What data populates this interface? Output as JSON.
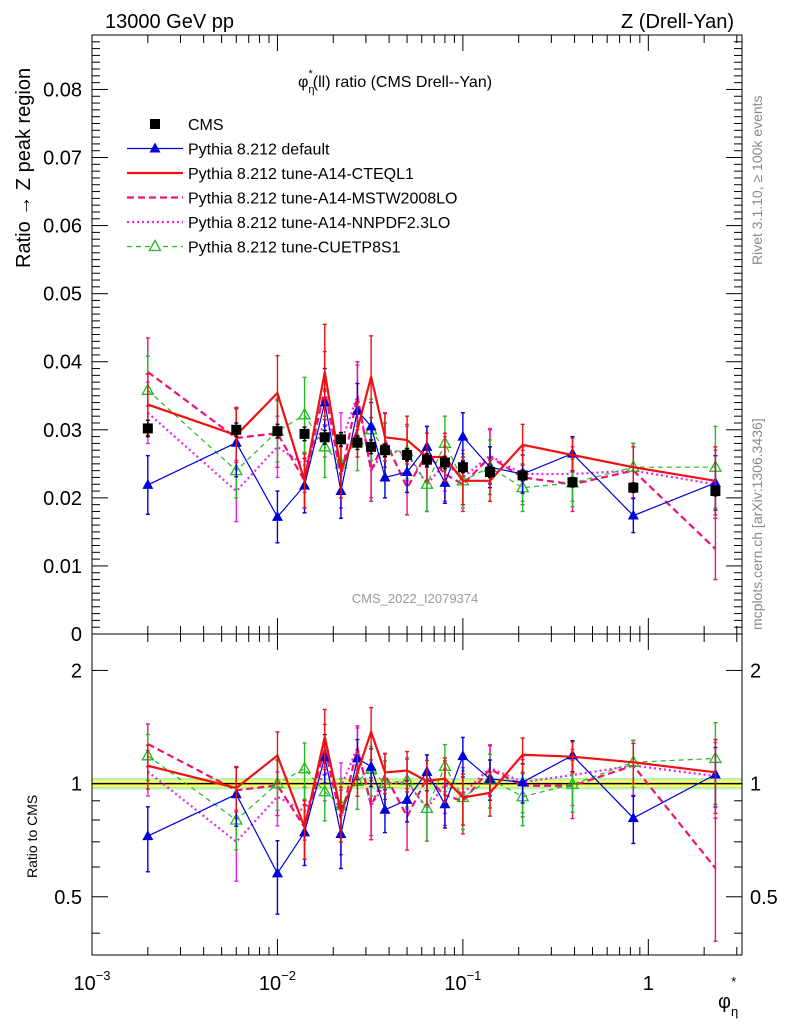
{
  "header": {
    "left": "13000 GeV pp",
    "right": "Z (Drell-Yan)"
  },
  "title": {
    "prefix": "φ",
    "sup": "*",
    "sub": "η",
    "suffix": "(ll) ratio (CMS Drell--Yan)"
  },
  "side_labels": {
    "rivet": "Rivet 3.1.10, ≥ 100k events",
    "mcplots": "mcplots.cern.ch [arXiv:1306.3436]"
  },
  "watermark": "CMS_2022_I2079374",
  "xaxis": {
    "label_main": "φ",
    "label_sup": "*",
    "label_sub": "η",
    "ticks": [
      {
        "base": "10",
        "exp": "−3"
      },
      {
        "base": "10",
        "exp": "−2"
      },
      {
        "base": "10",
        "exp": "−1"
      },
      {
        "base": "1",
        "exp": ""
      }
    ]
  },
  "top_yaxis": {
    "label": "Ratio → Z peak region",
    "ticks": [
      "0",
      "0.01",
      "0.02",
      "0.03",
      "0.04",
      "0.05",
      "0.06",
      "0.07",
      "0.08"
    ]
  },
  "bottom_yaxis": {
    "label": "Ratio to CMS",
    "ticks": [
      "0.5",
      "1",
      "2"
    ]
  },
  "colors": {
    "cms": "#000000",
    "default": "#0000dd",
    "cteql1": "#ee1111",
    "mstw": "#ee1177",
    "nnpdf": "#ee22ee",
    "cuetp8s1": "#22bb22",
    "band_inner": "#ffff66",
    "band_outer": "#99ee88"
  },
  "chart_data": {
    "type": "line",
    "xscale": "log",
    "xlim": [
      0.001,
      3.2
    ],
    "ylim_top": [
      0,
      0.088
    ],
    "ylim_ratio": [
      0.35,
      2.5
    ],
    "x": [
      0.002,
      0.006,
      0.01,
      0.014,
      0.018,
      0.022,
      0.027,
      0.032,
      0.038,
      0.05,
      0.064,
      0.08,
      0.1,
      0.14,
      0.21,
      0.39,
      0.83,
      2.3
    ],
    "series": [
      {
        "name": "CMS",
        "key": "cms",
        "style": "square",
        "values": [
          0.0302,
          0.03,
          0.0298,
          0.0294,
          0.0289,
          0.0286,
          0.0281,
          0.0275,
          0.027,
          0.0263,
          0.0256,
          0.0252,
          0.0245,
          0.0238,
          0.0233,
          0.0223,
          0.0215,
          0.021
        ],
        "errors": [
          0.0012,
          0.001,
          0.001,
          0.001,
          0.001,
          0.001,
          0.001,
          0.001,
          0.0009,
          0.0009,
          0.0009,
          0.0009,
          0.0008,
          0.0008,
          0.0008,
          0.0007,
          0.0007,
          0.0007
        ]
      },
      {
        "name": "Pythia 8.212 default",
        "key": "default",
        "style": "triangle",
        "values": [
          0.0219,
          0.0281,
          0.0172,
          0.0218,
          0.034,
          0.021,
          0.0328,
          0.0305,
          0.023,
          0.0238,
          0.0275,
          0.0222,
          0.029,
          0.0245,
          0.0235,
          0.0265,
          0.0174,
          0.0222
        ],
        "errors": [
          0.0043,
          0.005,
          0.0038,
          0.004,
          0.005,
          0.004,
          0.004,
          0.0035,
          0.003,
          0.003,
          0.003,
          0.003,
          0.0035,
          0.003,
          0.0028,
          0.0025,
          0.0025,
          0.004
        ]
      },
      {
        "name": "Pythia 8.212 tune-A14-CTEQL1",
        "key": "cteql1",
        "style": "solid",
        "values": [
          0.0337,
          0.0292,
          0.0354,
          0.0225,
          0.0385,
          0.024,
          0.03,
          0.0378,
          0.0289,
          0.0285,
          0.026,
          0.026,
          0.0225,
          0.0225,
          0.0278,
          0.0263,
          0.0245,
          0.0225
        ],
        "errors": [
          0.0045,
          0.004,
          0.0055,
          0.004,
          0.007,
          0.004,
          0.004,
          0.006,
          0.0035,
          0.0035,
          0.0035,
          0.0035,
          0.0035,
          0.003,
          0.003,
          0.0025,
          0.003,
          0.005
        ]
      },
      {
        "name": "Pythia 8.212 tune-A14-MSTW2008LO",
        "key": "mstw",
        "style": "dashed",
        "values": [
          0.0385,
          0.0288,
          0.0295,
          0.0225,
          0.036,
          0.023,
          0.035,
          0.024,
          0.0285,
          0.0215,
          0.0265,
          0.0235,
          0.022,
          0.026,
          0.023,
          0.022,
          0.024,
          0.0125
        ],
        "errors": [
          0.005,
          0.0045,
          0.005,
          0.004,
          0.0055,
          0.0045,
          0.005,
          0.0045,
          0.004,
          0.004,
          0.004,
          0.004,
          0.004,
          0.004,
          0.004,
          0.004,
          0.004,
          0.0045
        ]
      },
      {
        "name": "Pythia 8.212 tune-A14-NNPDF2.3LO",
        "key": "nnpdf",
        "style": "dotted",
        "values": [
          0.0325,
          0.021,
          0.0275,
          0.0248,
          0.031,
          0.028,
          0.035,
          0.024,
          0.027,
          0.0265,
          0.022,
          0.025,
          0.023,
          0.0262,
          0.0235,
          0.0235,
          0.024,
          0.022
        ],
        "errors": [
          0.0045,
          0.0045,
          0.0045,
          0.004,
          0.005,
          0.0045,
          0.0045,
          0.004,
          0.004,
          0.004,
          0.004,
          0.004,
          0.004,
          0.004,
          0.004,
          0.004,
          0.004,
          0.005
        ]
      },
      {
        "name": "Pythia 8.212 tune-CUETP8S1",
        "key": "cuetp8s1",
        "style": "dashed-triangle",
        "values": [
          0.0358,
          0.024,
          0.0298,
          0.0322,
          0.0275,
          0.025,
          0.0285,
          0.03,
          0.027,
          0.0268,
          0.022,
          0.028,
          0.0225,
          0.0245,
          0.0215,
          0.0222,
          0.0245,
          0.0245
        ],
        "errors": [
          0.005,
          0.004,
          0.0045,
          0.0055,
          0.0045,
          0.0045,
          0.0045,
          0.0045,
          0.004,
          0.004,
          0.004,
          0.004,
          0.004,
          0.004,
          0.0035,
          0.0035,
          0.0035,
          0.006
        ]
      }
    ]
  }
}
